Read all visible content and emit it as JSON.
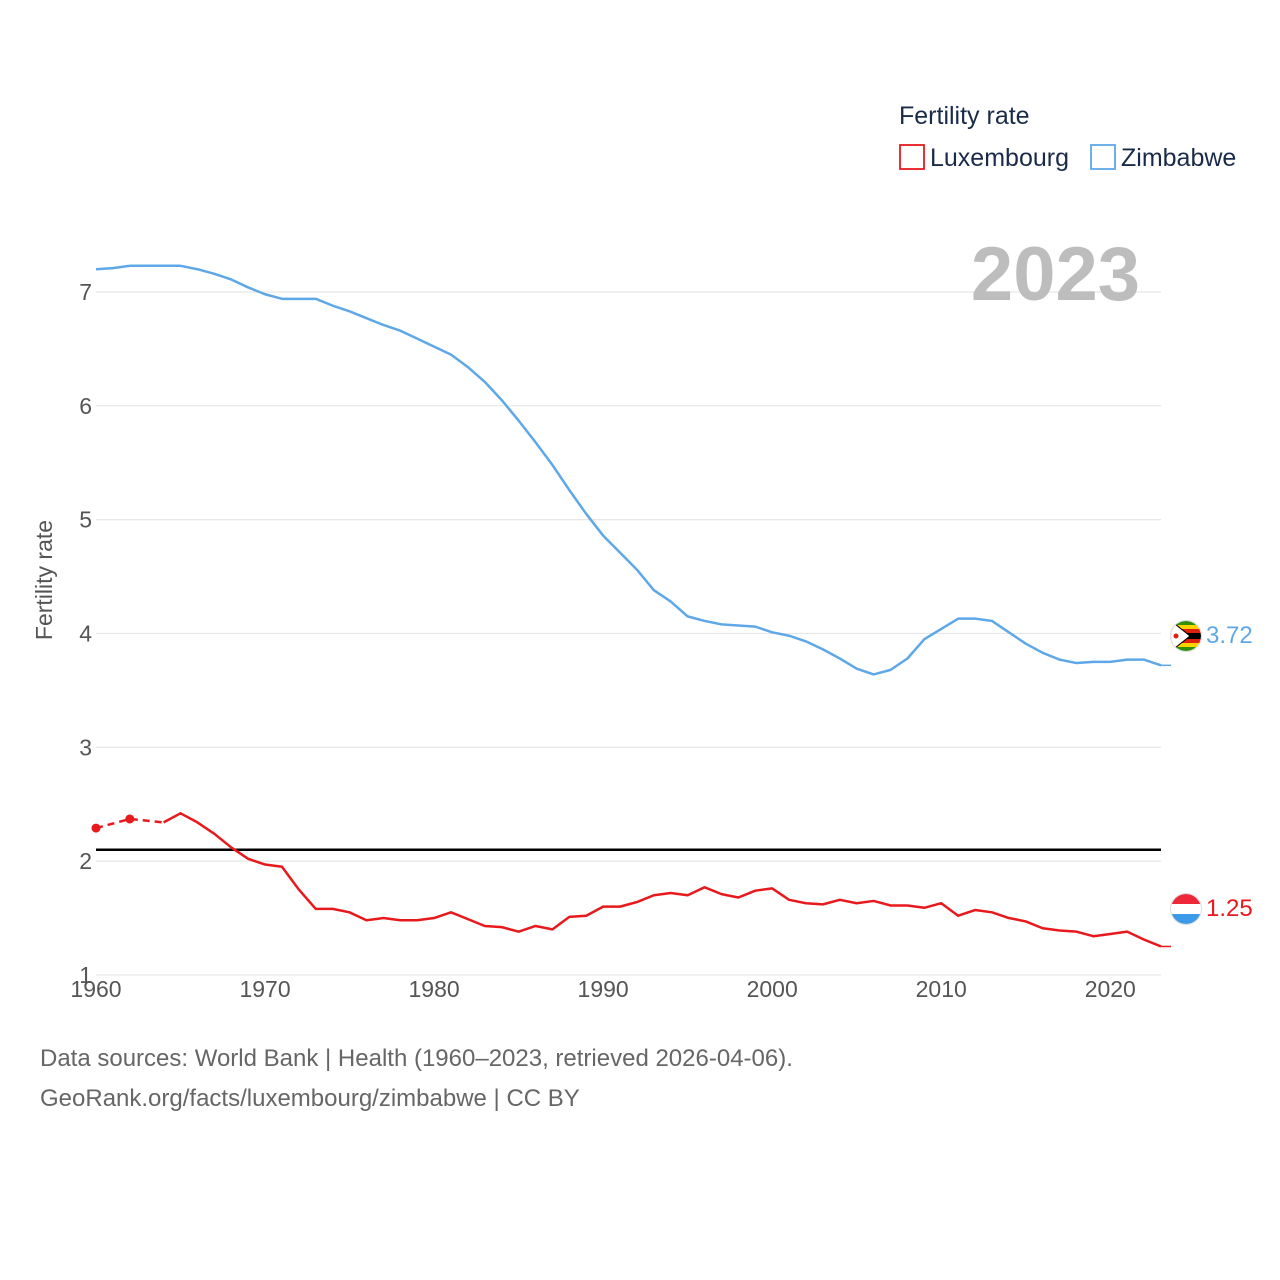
{
  "chart_data": {
    "type": "line",
    "title": "",
    "year_label": "2023",
    "legend_title": "Fertility rate",
    "ylabel": "Fertility rate",
    "xlabel": "",
    "xlim": [
      1960,
      2023
    ],
    "ylim": [
      0.85,
      7.65
    ],
    "yticks": [
      1,
      2,
      3,
      4,
      5,
      6,
      7
    ],
    "xticks": [
      1960,
      1970,
      1980,
      1990,
      2000,
      2010,
      2020
    ],
    "reference_line": {
      "value": 2.1,
      "color": "#000000"
    },
    "series": [
      {
        "name": "Luxembourg",
        "color": "#e8191c",
        "end_label": "1.25",
        "dashed_until": 1964,
        "dotted_points": [
          1960,
          1962
        ],
        "x": [
          1960,
          1962,
          1964,
          1965,
          1966,
          1967,
          1968,
          1969,
          1970,
          1971,
          1972,
          1973,
          1974,
          1975,
          1976,
          1977,
          1978,
          1979,
          1980,
          1981,
          1982,
          1983,
          1984,
          1985,
          1986,
          1987,
          1988,
          1989,
          1990,
          1991,
          1992,
          1993,
          1994,
          1995,
          1996,
          1997,
          1998,
          1999,
          2000,
          2001,
          2002,
          2003,
          2004,
          2005,
          2006,
          2007,
          2008,
          2009,
          2010,
          2011,
          2012,
          2013,
          2014,
          2015,
          2016,
          2017,
          2018,
          2019,
          2020,
          2021,
          2022,
          2023
        ],
        "values": [
          2.29,
          2.37,
          2.34,
          2.42,
          2.34,
          2.24,
          2.12,
          2.02,
          1.97,
          1.95,
          1.75,
          1.58,
          1.58,
          1.55,
          1.48,
          1.5,
          1.48,
          1.48,
          1.5,
          1.55,
          1.49,
          1.43,
          1.42,
          1.38,
          1.43,
          1.4,
          1.51,
          1.52,
          1.6,
          1.6,
          1.64,
          1.7,
          1.72,
          1.7,
          1.77,
          1.71,
          1.68,
          1.74,
          1.76,
          1.66,
          1.63,
          1.62,
          1.66,
          1.63,
          1.65,
          1.61,
          1.61,
          1.59,
          1.63,
          1.52,
          1.57,
          1.55,
          1.5,
          1.47,
          1.41,
          1.39,
          1.38,
          1.34,
          1.36,
          1.38,
          1.31,
          1.25
        ]
      },
      {
        "name": "Zimbabwe",
        "color": "#5ea8e8",
        "end_label": "3.72",
        "x": [
          1960,
          1961,
          1962,
          1963,
          1964,
          1965,
          1966,
          1967,
          1968,
          1969,
          1970,
          1971,
          1972,
          1973,
          1974,
          1975,
          1976,
          1977,
          1978,
          1979,
          1980,
          1981,
          1982,
          1983,
          1984,
          1985,
          1986,
          1987,
          1988,
          1989,
          1990,
          1991,
          1992,
          1993,
          1994,
          1995,
          1996,
          1997,
          1998,
          1999,
          2000,
          2001,
          2002,
          2003,
          2004,
          2005,
          2006,
          2007,
          2008,
          2009,
          2010,
          2011,
          2012,
          2013,
          2014,
          2015,
          2016,
          2017,
          2018,
          2019,
          2020,
          2021,
          2022,
          2023
        ],
        "values": [
          7.2,
          7.21,
          7.23,
          7.23,
          7.23,
          7.23,
          7.2,
          7.16,
          7.11,
          7.04,
          6.98,
          6.94,
          6.94,
          6.94,
          6.88,
          6.83,
          6.77,
          6.71,
          6.66,
          6.59,
          6.52,
          6.45,
          6.34,
          6.21,
          6.05,
          5.87,
          5.68,
          5.48,
          5.26,
          5.05,
          4.86,
          4.71,
          4.56,
          4.38,
          4.28,
          4.15,
          4.11,
          4.08,
          4.07,
          4.06,
          4.01,
          3.98,
          3.93,
          3.86,
          3.78,
          3.69,
          3.64,
          3.68,
          3.78,
          3.95,
          4.04,
          4.13,
          4.13,
          4.11,
          4.01,
          3.91,
          3.83,
          3.77,
          3.74,
          3.75,
          3.75,
          3.77,
          3.77,
          3.72
        ]
      }
    ]
  },
  "footer": {
    "line1": "Data sources: World Bank | Health (1960–2023, retrieved 2026-04-06).",
    "line2": "GeoRank.org/facts/luxembourg/zimbabwe | CC BY"
  }
}
